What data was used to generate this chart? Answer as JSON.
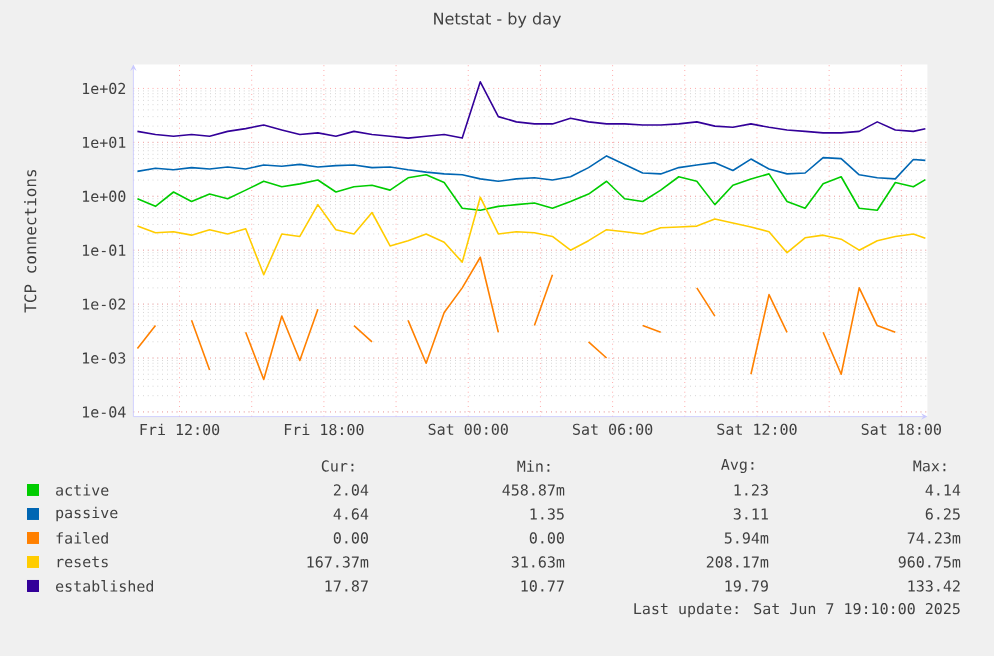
{
  "chart_data": {
    "type": "line",
    "title": "Netstat - by day",
    "ylabel": "TCP connections",
    "log": "y",
    "grid": true,
    "legend": "bottom",
    "xlim": [
      "2025-06-06T10:05",
      "2025-06-07T19:05"
    ],
    "xticks": [
      {
        "value": "2025-06-06T12:00",
        "label": "Fri 12:00"
      },
      {
        "value": "2025-06-06T15:00",
        "label": null
      },
      {
        "value": "2025-06-06T18:00",
        "label": "Fri 18:00"
      },
      {
        "value": "2025-06-06T21:00",
        "label": null
      },
      {
        "value": "2025-06-07T00:00",
        "label": "Sat 00:00"
      },
      {
        "value": "2025-06-07T03:00",
        "label": null
      },
      {
        "value": "2025-06-07T06:00",
        "label": "Sat 06:00"
      },
      {
        "value": "2025-06-07T09:00",
        "label": null
      },
      {
        "value": "2025-06-07T12:00",
        "label": "Sat 12:00"
      },
      {
        "value": "2025-06-07T15:00",
        "label": null
      },
      {
        "value": "2025-06-07T18:00",
        "label": "Sat 18:00"
      }
    ],
    "ylim": [
      8.2e-05,
      277
    ],
    "yticks": [
      {
        "value": 0.0001,
        "label": "1e-04"
      },
      {
        "value": 0.001,
        "label": "1e-03"
      },
      {
        "value": 0.01,
        "label": "1e-02"
      },
      {
        "value": 0.1,
        "label": "1e-01"
      },
      {
        "value": 1,
        "label": "1e+00"
      },
      {
        "value": 10,
        "label": "1e+01"
      },
      {
        "value": 100,
        "label": "1e+02"
      }
    ],
    "x": [
      "2025-06-06T10:15",
      "2025-06-06T11:00",
      "2025-06-06T11:45",
      "2025-06-06T12:30",
      "2025-06-06T13:15",
      "2025-06-06T14:00",
      "2025-06-06T14:45",
      "2025-06-06T15:30",
      "2025-06-06T16:15",
      "2025-06-06T17:00",
      "2025-06-06T17:45",
      "2025-06-06T18:30",
      "2025-06-06T19:15",
      "2025-06-06T20:00",
      "2025-06-06T20:45",
      "2025-06-06T21:30",
      "2025-06-06T22:15",
      "2025-06-06T23:00",
      "2025-06-06T23:45",
      "2025-06-07T00:30",
      "2025-06-07T01:15",
      "2025-06-07T02:00",
      "2025-06-07T02:45",
      "2025-06-07T03:30",
      "2025-06-07T04:15",
      "2025-06-07T05:00",
      "2025-06-07T05:45",
      "2025-06-07T06:30",
      "2025-06-07T07:15",
      "2025-06-07T08:00",
      "2025-06-07T08:45",
      "2025-06-07T09:30",
      "2025-06-07T10:15",
      "2025-06-07T11:00",
      "2025-06-07T11:45",
      "2025-06-07T12:30",
      "2025-06-07T13:15",
      "2025-06-07T14:00",
      "2025-06-07T14:45",
      "2025-06-07T15:30",
      "2025-06-07T16:15",
      "2025-06-07T17:00",
      "2025-06-07T17:45",
      "2025-06-07T18:30",
      "2025-06-07T19:00"
    ],
    "series": [
      {
        "name": "active",
        "color": "#00cc00",
        "values": [
          0.9,
          0.65,
          1.2,
          0.8,
          1.1,
          0.9,
          1.3,
          1.9,
          1.5,
          1.7,
          2.0,
          1.2,
          1.5,
          1.6,
          1.3,
          2.2,
          2.5,
          1.8,
          0.6,
          0.55,
          0.65,
          0.7,
          0.75,
          0.6,
          0.8,
          1.1,
          1.9,
          0.9,
          0.8,
          1.3,
          2.3,
          1.9,
          0.7,
          1.6,
          2.1,
          2.6,
          0.8,
          0.6,
          1.7,
          2.3,
          0.6,
          0.55,
          1.8,
          1.5,
          2.04
        ]
      },
      {
        "name": "passive",
        "color": "#0066b3",
        "values": [
          2.9,
          3.3,
          3.1,
          3.4,
          3.2,
          3.5,
          3.2,
          3.8,
          3.6,
          3.9,
          3.5,
          3.7,
          3.8,
          3.4,
          3.5,
          3.1,
          2.8,
          2.6,
          2.5,
          2.1,
          1.9,
          2.1,
          2.2,
          2.0,
          2.3,
          3.4,
          5.6,
          3.9,
          2.7,
          2.6,
          3.4,
          3.8,
          4.2,
          3.0,
          4.9,
          3.2,
          2.6,
          2.7,
          5.2,
          5.0,
          2.5,
          2.2,
          2.1,
          4.8,
          4.64
        ]
      },
      {
        "name": "failed",
        "color": "#ff8000",
        "values": [
          0.0015,
          0.004,
          null,
          0.005,
          0.0006,
          null,
          0.003,
          0.0004,
          0.006,
          0.0009,
          0.008,
          null,
          0.004,
          0.002,
          null,
          0.005,
          0.0008,
          0.007,
          0.02,
          0.074,
          0.003,
          null,
          0.004,
          0.035,
          null,
          0.002,
          0.001,
          null,
          0.004,
          0.003,
          null,
          0.02,
          0.006,
          null,
          0.0005,
          0.015,
          0.003,
          null,
          0.003,
          0.0005,
          0.02,
          0.004,
          0.003,
          null,
          null
        ]
      },
      {
        "name": "resets",
        "color": "#ffcc00",
        "values": [
          0.28,
          0.21,
          0.22,
          0.19,
          0.24,
          0.2,
          0.25,
          0.035,
          0.2,
          0.18,
          0.7,
          0.24,
          0.2,
          0.5,
          0.12,
          0.15,
          0.2,
          0.14,
          0.06,
          0.96,
          0.2,
          0.22,
          0.21,
          0.18,
          0.1,
          0.15,
          0.24,
          0.22,
          0.2,
          0.26,
          0.27,
          0.28,
          0.38,
          0.32,
          0.27,
          0.22,
          0.09,
          0.17,
          0.19,
          0.16,
          0.1,
          0.15,
          0.18,
          0.2,
          0.167
        ]
      },
      {
        "name": "established",
        "color": "#330099",
        "values": [
          16,
          14,
          13,
          14,
          13,
          16,
          18,
          21,
          17,
          14,
          15,
          13,
          16,
          14,
          13,
          12,
          13,
          14,
          12,
          133,
          30,
          24,
          22,
          22,
          28,
          24,
          22,
          22,
          21,
          21,
          22,
          24,
          20,
          19,
          22,
          19,
          17,
          16,
          15,
          15,
          16,
          24,
          17,
          16,
          17.9
        ]
      }
    ],
    "annotations": [
      "Cur:",
      "Min:",
      "Avg:",
      "Max:",
      "2.04",
      "458.87m",
      "1.23",
      "4.14",
      "4.64",
      "1.35",
      "3.11",
      "6.25",
      "0.00",
      "0.00",
      "5.94m",
      "74.23m",
      "167.37m",
      "31.63m",
      "208.17m",
      "960.75m",
      "17.87",
      "10.77",
      "19.79",
      "133.42",
      "Last update: Sat Jun  7 19:10:00 2025"
    ]
  }
}
